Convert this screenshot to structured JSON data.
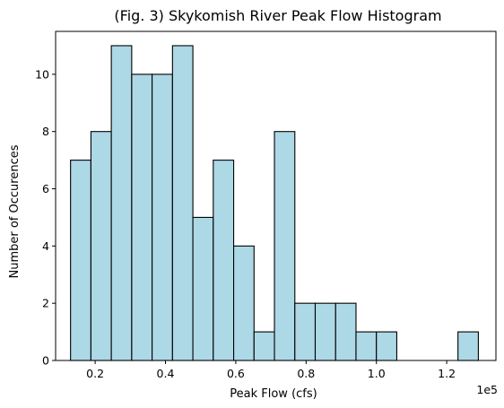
{
  "chart_data": {
    "type": "bar",
    "title": "(Fig. 3) Skykomish River Peak Flow Histogram",
    "xlabel": "Peak Flow (cfs)",
    "ylabel": "Number of Occurences",
    "x_scale_label": "1e5",
    "xlim": [
      0.0875,
      1.34
    ],
    "ylim": [
      0,
      11.5
    ],
    "bin_start": 0.13,
    "bin_width": 0.058,
    "values": [
      7,
      8,
      11,
      10,
      10,
      11,
      5,
      7,
      4,
      1,
      8,
      2,
      2,
      2,
      1,
      1,
      0,
      0,
      0,
      1
    ],
    "x_ticks": [
      0.2,
      0.4,
      0.6,
      0.8,
      1.0,
      1.2
    ],
    "x_tick_labels": [
      "0.2",
      "0.4",
      "0.6",
      "0.8",
      "1.0",
      "1.2"
    ],
    "y_ticks": [
      0,
      2,
      4,
      6,
      8,
      10
    ],
    "y_tick_labels": [
      "0",
      "2",
      "4",
      "6",
      "8",
      "10"
    ],
    "bar_color": "#add8e6",
    "edge_color": "#000000",
    "grid": false,
    "legend": "none"
  }
}
